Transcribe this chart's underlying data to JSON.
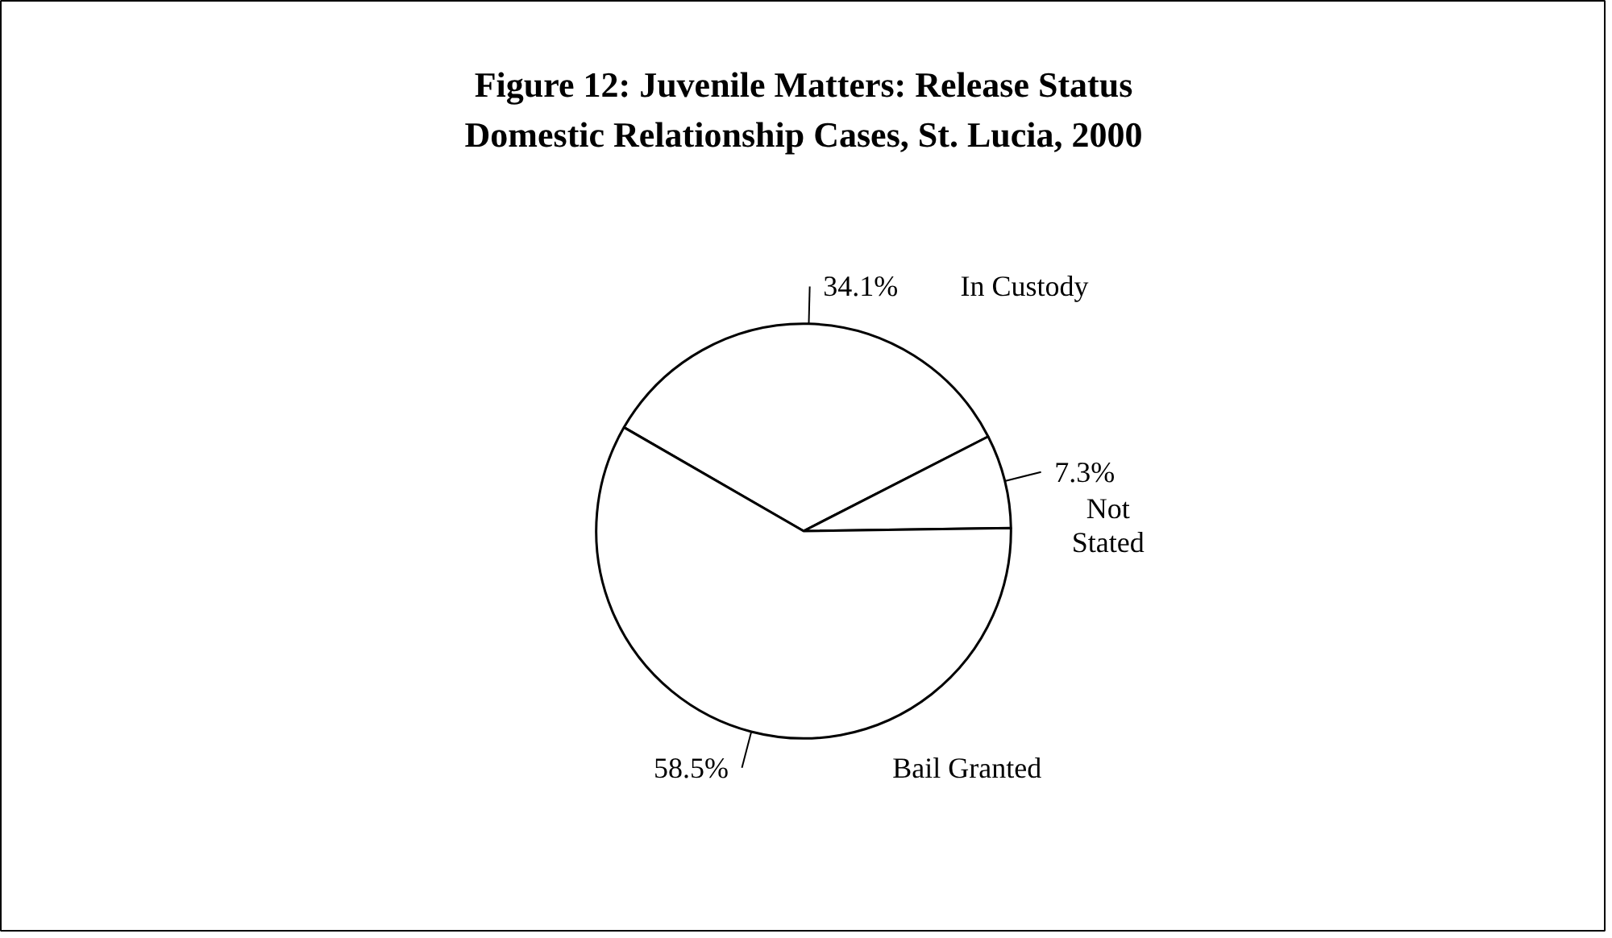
{
  "chart_data": {
    "type": "pie",
    "title": "Figure 12: Juvenile Matters: Release Status\nDomestic Relationship Cases, St. Lucia, 2000",
    "categories": [
      "In Custody",
      "Not Stated",
      "Bail Granted"
    ],
    "values": [
      34.1,
      7.3,
      58.5
    ],
    "value_labels": [
      "34.1%",
      "7.3%",
      "58.5%"
    ],
    "colors": [
      "#ffffff",
      "#ffffff",
      "#ffffff"
    ],
    "legend": false
  }
}
